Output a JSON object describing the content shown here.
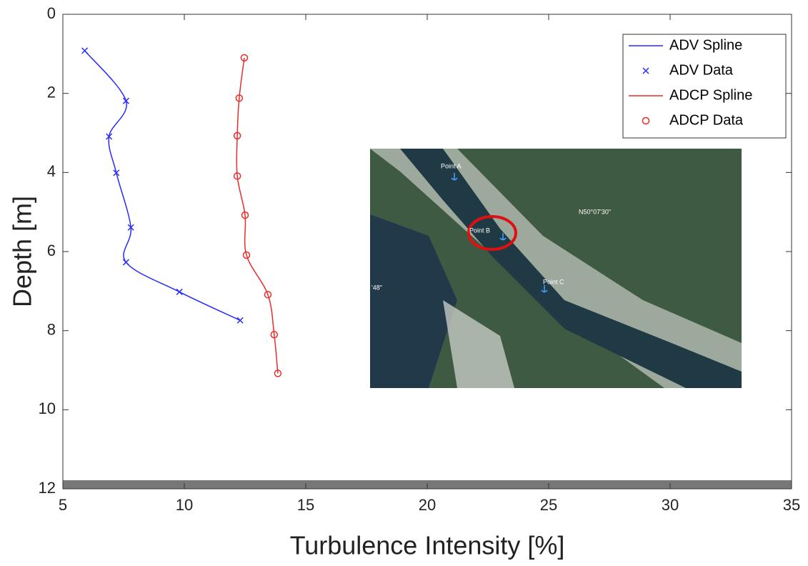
{
  "chart_data": {
    "type": "line",
    "xlabel": "Turbulence Intensity [%]",
    "ylabel": "Depth [m]",
    "xlim": [
      5,
      35
    ],
    "xticks": [
      5,
      10,
      15,
      20,
      25,
      30,
      35
    ],
    "ylim": [
      0,
      12
    ],
    "yticks": [
      0,
      2,
      4,
      6,
      8,
      10,
      12
    ],
    "y_reversed": true,
    "legend": "upper right",
    "series": [
      {
        "name": "ADV Spline",
        "style": "spline",
        "color": "#2a2aff",
        "x": [
          5.9,
          7.6,
          6.9,
          7.2,
          7.8,
          7.6,
          9.8,
          12.3
        ],
        "y": [
          0.92,
          2.19,
          3.09,
          4.01,
          5.39,
          6.27,
          7.02,
          7.74
        ]
      },
      {
        "name": "ADV Data",
        "style": "x",
        "color": "#2a2aff",
        "x": [
          5.9,
          7.6,
          6.9,
          7.2,
          7.8,
          7.6,
          9.8,
          12.3
        ],
        "y": [
          0.92,
          2.19,
          3.09,
          4.01,
          5.39,
          6.27,
          7.02,
          7.74
        ]
      },
      {
        "name": "ADCP Spline",
        "style": "spline",
        "color": "#ee2a2a",
        "x": [
          12.47,
          12.26,
          12.18,
          12.18,
          12.5,
          12.56,
          13.44,
          13.7,
          13.85
        ],
        "y": [
          1.1,
          2.12,
          3.07,
          4.09,
          5.08,
          6.09,
          7.09,
          8.1,
          9.08
        ]
      },
      {
        "name": "ADCP Data",
        "style": "o",
        "color": "#ee2a2a",
        "x": [
          12.47,
          12.26,
          12.18,
          12.18,
          12.5,
          12.56,
          13.44,
          13.7,
          13.85
        ],
        "y": [
          1.1,
          2.12,
          3.07,
          4.09,
          5.08,
          6.09,
          7.09,
          8.1,
          9.08
        ]
      }
    ],
    "inset_labels": [
      "Point A",
      "Point B",
      "Point C",
      "N50°07'30\"",
      "'48\""
    ]
  }
}
